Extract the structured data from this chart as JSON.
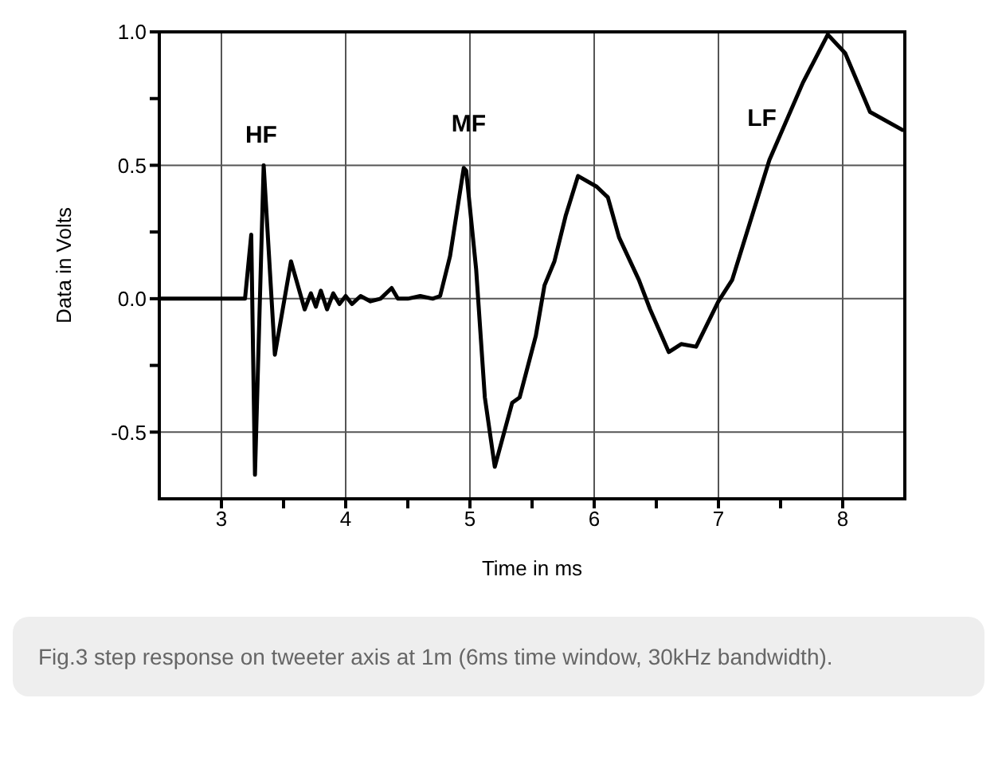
{
  "chart_data": {
    "type": "line",
    "xlabel": "Time in ms",
    "ylabel": "Data in Volts",
    "xlim": [
      2.5,
      8.5
    ],
    "ylim": [
      -0.75,
      1.0
    ],
    "xticks": [
      3,
      {
        "value": 3.5,
        "label": null
      },
      4,
      {
        "value": 4.5,
        "label": null
      },
      5,
      {
        "value": 5.5,
        "label": null
      },
      6,
      {
        "value": 6.5,
        "label": null
      },
      7,
      {
        "value": 7.5,
        "label": null
      },
      8
    ],
    "yticks": [
      {
        "value": -0.5,
        "label": "-0.5"
      },
      {
        "value": -0.25,
        "label": null
      },
      {
        "value": 0,
        "label": "0.0"
      },
      {
        "value": 0.25,
        "label": null
      },
      {
        "value": 0.5,
        "label": "0.5"
      },
      {
        "value": 0.75,
        "label": null
      },
      {
        "value": 1,
        "label": "1.0"
      }
    ],
    "grid": true,
    "marker": "none",
    "line_style": "solid",
    "annotations": [
      "HF",
      "MF",
      "LF",
      "Fig.3 step response on tweeter axis at 1m (6ms time window, 30kHz bandwidth)."
    ],
    "series": [
      {
        "color": "#000000",
        "x": [
          2.5,
          3.19,
          3.24,
          3.27,
          3.34,
          3.43,
          3.56,
          3.67,
          3.72,
          3.76,
          3.8,
          3.85,
          3.9,
          3.95,
          4.0,
          4.05,
          4.12,
          4.2,
          4.28,
          4.37,
          4.42,
          4.5,
          4.6,
          4.7,
          4.76,
          4.84,
          4.95,
          4.97,
          5.05,
          5.12,
          5.2,
          5.34,
          5.4,
          5.53,
          5.6,
          5.68,
          5.77,
          5.87,
          6.02,
          6.11,
          6.2,
          6.36,
          6.45,
          6.6,
          6.7,
          6.82,
          7.0,
          7.11,
          7.41,
          7.68,
          7.88,
          8.02,
          8.22,
          8.49
        ],
        "values": [
          0,
          0,
          0.24,
          -0.66,
          0.5,
          -0.21,
          0.14,
          -0.04,
          0.02,
          -0.03,
          0.03,
          -0.04,
          0.02,
          -0.02,
          0.01,
          -0.02,
          0.01,
          -0.01,
          0,
          0.04,
          0,
          0,
          0.01,
          0,
          0.01,
          0.16,
          0.49,
          0.48,
          0.11,
          -0.37,
          -0.63,
          -0.39,
          -0.37,
          -0.14,
          0.05,
          0.14,
          0.31,
          0.46,
          0.42,
          0.38,
          0.23,
          0.07,
          -0.04,
          -0.2,
          -0.17,
          -0.18,
          -0.01,
          0.07,
          0.52,
          0.81,
          0.99,
          0.92,
          0.7,
          0.63
        ]
      }
    ]
  }
}
